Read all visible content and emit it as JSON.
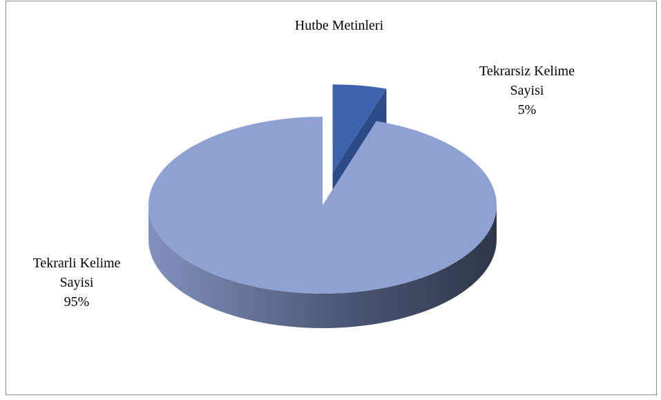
{
  "chart_data": {
    "type": "pie",
    "title": "Hutbe Metinleri",
    "categories": [
      "Tekrarsiz Kelime Sayisi",
      "Tekrarli Kelime Sayisi"
    ],
    "values": [
      5,
      95
    ],
    "value_labels": [
      "5%",
      "95%"
    ],
    "colors": [
      "#3f62ad",
      "#8fa1d3"
    ]
  }
}
